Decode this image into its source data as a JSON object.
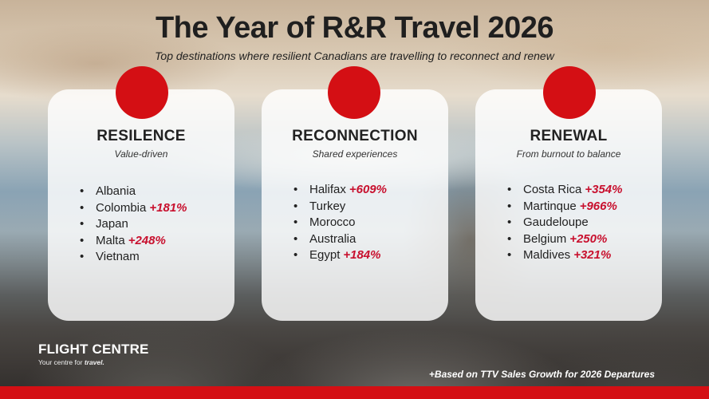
{
  "header": {
    "title": "The Year of R&R Travel 2026",
    "subtitle": "Top destinations where resilient Canadians are travelling to reconnect and renew"
  },
  "cards": [
    {
      "heading": "RESILENCE",
      "subheading": "Value-driven",
      "items": [
        {
          "name": "Albania",
          "growth": ""
        },
        {
          "name": "Colombia",
          "growth": "+181%"
        },
        {
          "name": "Japan",
          "growth": ""
        },
        {
          "name": "Malta",
          "growth": "+248%"
        },
        {
          "name": "Vietnam",
          "growth": ""
        }
      ]
    },
    {
      "heading": "RECONNECTION",
      "subheading": "Shared experiences",
      "items": [
        {
          "name": "Halifax",
          "growth": "+609%"
        },
        {
          "name": "Turkey",
          "growth": ""
        },
        {
          "name": "Morocco",
          "growth": ""
        },
        {
          "name": "Australia",
          "growth": ""
        },
        {
          "name": "Egypt",
          "growth": "+184%"
        }
      ]
    },
    {
      "heading": "RENEWAL",
      "subheading": "From burnout to balance",
      "items": [
        {
          "name": "Costa Rica",
          "growth": "+354%"
        },
        {
          "name": "Martinque",
          "growth": "+966%"
        },
        {
          "name": "Gaudeloupe",
          "growth": ""
        },
        {
          "name": "Belgium",
          "growth": "+250%"
        },
        {
          "name": "Maldives",
          "growth": "+321%"
        }
      ]
    }
  ],
  "brand": {
    "name": "FLIGHT CENTRE",
    "tagline_prefix": "Your centre for ",
    "tagline_emphasis": "travel."
  },
  "footnote": "+Based on TTV Sales Growth for 2026 Departures",
  "colors": {
    "accent": "#d40f14",
    "growth_text": "#c8102e",
    "title_text": "#1f1f1f"
  }
}
